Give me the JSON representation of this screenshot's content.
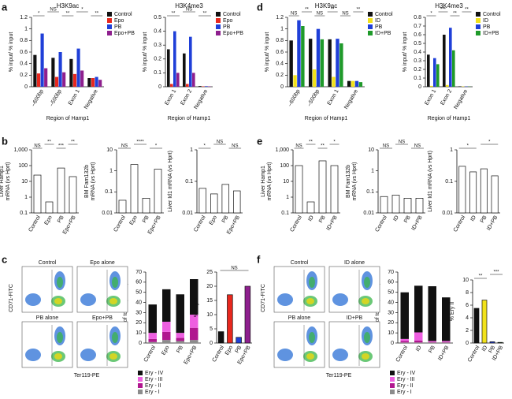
{
  "panel_labels": [
    "a",
    "b",
    "c",
    "d",
    "e",
    "f"
  ],
  "flow_panels": [
    {
      "titles": [
        "Control",
        "Epo alone",
        "PB alone",
        "Epo+PB"
      ],
      "ylabel": "CD71-FITC",
      "xlabel": "Ter119-PE"
    },
    {
      "titles": [
        "Control",
        "ID alone",
        "PB alone",
        "ID+PB"
      ],
      "ylabel": "CD71-FITC",
      "xlabel": "Ter119-PE"
    }
  ],
  "chart_data": [
    {
      "type": "grouped_bar",
      "title": "H3K9ac",
      "ylabel": "% input/ % input",
      "xlabel": "Region of Hamp1",
      "categories": [
        "–600bp",
        "–500bp",
        "Exon 1",
        "Negative"
      ],
      "series": [
        {
          "name": "Control",
          "color": "#111111",
          "values": [
            0.55,
            0.5,
            0.48,
            0.15
          ]
        },
        {
          "name": "Epo",
          "color": "#e8281e",
          "values": [
            0.23,
            0.17,
            0.22,
            0.15
          ]
        },
        {
          "name": "PB",
          "color": "#1f3fd8",
          "values": [
            0.92,
            0.6,
            0.66,
            0.17
          ]
        },
        {
          "name": "Epo+PB",
          "color": "#8e1f8e",
          "values": [
            0.32,
            0.25,
            0.28,
            0.12
          ]
        }
      ],
      "ylim": [
        0,
        1.2
      ],
      "yticks": [
        0,
        0.2,
        0.4,
        0.6,
        0.8,
        1,
        1.2
      ],
      "legend": true,
      "significance": [
        "*",
        "NS",
        "**",
        "*",
        "**"
      ]
    },
    {
      "type": "grouped_bar",
      "title": "H3K4me3",
      "ylabel": "% input/ % input",
      "xlabel": "Region of Hamp1",
      "categories": [
        "Exon 1",
        "Exon 2",
        "Negative"
      ],
      "series": [
        {
          "name": "Control",
          "color": "#111111",
          "values": [
            0.27,
            0.24,
            0.005
          ]
        },
        {
          "name": "Epo",
          "color": "#e8281e",
          "values": [
            0.02,
            0.02,
            0.003
          ]
        },
        {
          "name": "PB",
          "color": "#1f3fd8",
          "values": [
            0.4,
            0.36,
            0.004
          ]
        },
        {
          "name": "Epo+PB",
          "color": "#8e1f8e",
          "values": [
            0.1,
            0.1,
            0.003
          ]
        }
      ],
      "ylim": [
        0,
        0.5
      ],
      "yticks": [
        0,
        0.1,
        0.2,
        0.3,
        0.4,
        0.5
      ],
      "legend": true,
      "significance": [
        "**",
        "NS",
        "**"
      ]
    },
    {
      "type": "bar",
      "log": true,
      "ylabel": [
        "Liver Hamp1",
        "mRNA (vs Hprt)"
      ],
      "categories": [
        "Control",
        "Epo",
        "PB",
        "Epo+PB"
      ],
      "values": [
        25,
        0.5,
        70,
        20
      ],
      "color": "#ffffff",
      "ylim": [
        0.1,
        1000
      ],
      "yticks": [
        0.1,
        1,
        10,
        100,
        {
          "value": 1000,
          "label": "1,000"
        }
      ],
      "significance": [
        "NS",
        "**",
        "***",
        "**"
      ]
    },
    {
      "type": "bar",
      "log": true,
      "ylabel": [
        "BM Fam132b",
        "mRNA (vs Hprt)"
      ],
      "categories": [
        "Control",
        "Epo",
        "PB",
        "Epo+PB"
      ],
      "values": [
        0.04,
        2,
        0.05,
        1.2
      ],
      "color": "#ffffff",
      "ylim": [
        0.01,
        10
      ],
      "yticks": [
        0.01,
        0.1,
        1,
        10
      ],
      "significance": [
        "NS",
        "****",
        "*"
      ]
    },
    {
      "type": "bar",
      "log": true,
      "ylabel": "Liver Id1 mRNA (vs Hprt)",
      "categories": [
        "Control",
        "Epo",
        "PB",
        "Epo+PB"
      ],
      "values": [
        0.06,
        0.04,
        0.08,
        0.05
      ],
      "color": "#ffffff",
      "ylim": [
        0.01,
        1
      ],
      "yticks": [
        0.01,
        0.1,
        1
      ],
      "significance": [
        "*",
        "NS",
        "NS"
      ]
    },
    {
      "type": "stacked_bar",
      "ylabel": "% total of total splenocytes",
      "categories": [
        "Control",
        "Epo",
        "PB",
        "Epo+PB"
      ],
      "series": [
        {
          "name": "Ery - I",
          "color": "#8c8c8c",
          "values": [
            1,
            3,
            2,
            3
          ]
        },
        {
          "name": "Ery - II",
          "color": "#b0178f",
          "values": [
            3,
            8,
            3,
            12
          ]
        },
        {
          "name": "Ery - III",
          "color": "#ee5fe0",
          "values": [
            6,
            10,
            5,
            13
          ]
        },
        {
          "name": "Ery - IV",
          "color": "#111111",
          "values": [
            28,
            32,
            38,
            35
          ]
        }
      ],
      "ylim": [
        0,
        70
      ],
      "yticks": [
        0,
        10,
        20,
        30,
        40,
        50,
        60,
        70
      ],
      "legend": true
    },
    {
      "type": "bar",
      "ylabel": "% Ery II",
      "categories": [
        "Control",
        "Epo",
        "PB",
        "Epo+PB"
      ],
      "values": [
        4,
        17,
        2,
        20
      ],
      "colors": [
        "#111111",
        "#e8281e",
        "#1f3fd8",
        "#8e1f8e"
      ],
      "ylim": [
        0,
        25
      ],
      "yticks": [
        0,
        5,
        10,
        15,
        20,
        25
      ],
      "significance": [
        "NS"
      ]
    },
    {
      "type": "grouped_bar",
      "title": "H3K9ac",
      "ylabel": "% input/ % input",
      "xlabel": "Region of Hamp1",
      "categories": [
        "–600bp",
        "–500bp",
        "Exon 1",
        "Negative"
      ],
      "series": [
        {
          "name": "Control",
          "color": "#111111",
          "values": [
            0.8,
            0.83,
            0.82,
            0.1
          ]
        },
        {
          "name": "ID",
          "color": "#f2e21a",
          "values": [
            0.2,
            0.3,
            0.17,
            0.1
          ]
        },
        {
          "name": "PB",
          "color": "#1f3fd8",
          "values": [
            1.15,
            1,
            0.83,
            0.1
          ]
        },
        {
          "name": "ID+PB",
          "color": "#1f9a2a",
          "values": [
            1.05,
            0.82,
            0.75,
            0.08
          ]
        }
      ],
      "ylim": [
        0,
        1.2
      ],
      "yticks": [
        0,
        0.2,
        0.4,
        0.6,
        0.8,
        1,
        1.2
      ],
      "legend": true,
      "significance": [
        "NS",
        "**",
        "NS",
        "**",
        "NS",
        "**"
      ]
    },
    {
      "type": "grouped_bar",
      "title": "H3K4me3",
      "ylabel": "% input/ % input",
      "xlabel": "Region of Hamp1",
      "categories": [
        "Exon 1",
        "Exon 2",
        "Negative"
      ],
      "series": [
        {
          "name": "Control",
          "color": "#111111",
          "values": [
            0.37,
            0.6,
            0.005
          ]
        },
        {
          "name": "ID",
          "color": "#f2e21a",
          "values": [
            0.01,
            0.02,
            0.004
          ]
        },
        {
          "name": "PB",
          "color": "#1f3fd8",
          "values": [
            0.33,
            0.68,
            0.004
          ]
        },
        {
          "name": "ID+PB",
          "color": "#1f9a2a",
          "values": [
            0.26,
            0.42,
            0.003
          ]
        }
      ],
      "ylim": [
        0,
        0.8
      ],
      "yticks": [
        0,
        0.1,
        0.2,
        0.3,
        0.4,
        0.5,
        0.6,
        0.7,
        0.8
      ],
      "legend": true,
      "significance": [
        "*",
        "***",
        "**",
        "**"
      ]
    },
    {
      "type": "bar",
      "log": true,
      "ylabel": [
        "Liver Hamp1",
        "mRNA (vs Hprt)"
      ],
      "categories": [
        "Control",
        "ID",
        "PB",
        "ID+PB"
      ],
      "values": [
        100,
        0.5,
        200,
        100
      ],
      "color": "#ffffff",
      "ylim": [
        0.1,
        1000
      ],
      "yticks": [
        0.1,
        1,
        10,
        100,
        {
          "value": 1000,
          "label": "1,000"
        }
      ],
      "significance": [
        "NS",
        "**",
        "**",
        "*"
      ]
    },
    {
      "type": "bar",
      "log": true,
      "ylabel": [
        "BM Fam132b",
        "mRNA (vs Hprt)"
      ],
      "categories": [
        "Control",
        "ID",
        "PB",
        "ID+PB"
      ],
      "values": [
        0.06,
        0.07,
        0.05,
        0.05
      ],
      "color": "#ffffff",
      "ylim": [
        0.01,
        10
      ],
      "yticks": [
        0.01,
        0.1,
        1,
        10
      ],
      "significance": [
        "NS",
        "NS",
        "NS"
      ]
    },
    {
      "type": "bar",
      "log": true,
      "ylabel": "Liver Id1 mRNA (vs Hprt)",
      "categories": [
        "Control",
        "ID",
        "PB",
        "ID+PB"
      ],
      "values": [
        0.3,
        0.2,
        0.25,
        0.15
      ],
      "color": "#ffffff",
      "ylim": [
        0.01,
        1
      ],
      "yticks": [
        0.01,
        0.1,
        1
      ],
      "significance": [
        "*",
        "*"
      ]
    },
    {
      "type": "stacked_bar",
      "ylabel": "% total of total splenocytes",
      "categories": [
        "Control",
        "ID",
        "PB",
        "ID+PB"
      ],
      "series": [
        {
          "name": "Ery - I",
          "color": "#8c8c8c",
          "values": [
            0.5,
            0.5,
            0.5,
            0.5
          ]
        },
        {
          "name": "Ery - II",
          "color": "#b0178f",
          "values": [
            1.5,
            2,
            0.5,
            0.5
          ]
        },
        {
          "name": "Ery - III",
          "color": "#ee5fe0",
          "values": [
            2,
            8,
            1,
            1
          ]
        },
        {
          "name": "Ery - IV",
          "color": "#111111",
          "values": [
            46,
            46,
            54,
            43
          ]
        }
      ],
      "ylim": [
        0,
        70
      ],
      "yticks": [
        0,
        10,
        20,
        30,
        40,
        50,
        60,
        70
      ],
      "legend": true
    },
    {
      "type": "bar",
      "ylabel": "% Ery II",
      "categories": [
        "Control",
        "ID",
        "PB",
        "ID+PB"
      ],
      "values": [
        5.5,
        6.8,
        0.2,
        0.1
      ],
      "colors": [
        "#111111",
        "#f2e21a",
        "#1f3fd8",
        "#1f9a2a"
      ],
      "ylim": [
        0,
        10
      ],
      "yticks": [
        0,
        2,
        4,
        6,
        8,
        10
      ],
      "significance": [
        "**",
        "***"
      ]
    }
  ]
}
